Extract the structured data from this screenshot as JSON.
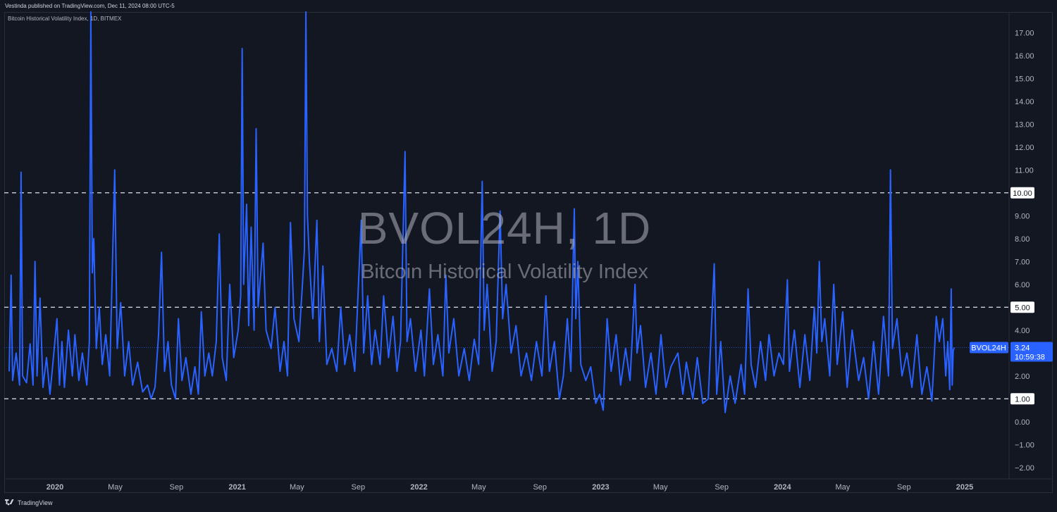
{
  "header": {
    "published": "Vestinda published on TradingView.com, Dec 11, 2024 08:00 UTC-5"
  },
  "chart_title": "Bitcoin Historical Volatility Index, 1D, BITMEX",
  "watermark": {
    "symbol": "BVOL24H, 1D",
    "name": "Bitcoin Historical Volatility Index"
  },
  "footer": {
    "brand": "TradingView"
  },
  "colors": {
    "series": "#2962ff",
    "background": "#131722",
    "axis_text": "#b2b5be"
  },
  "chart_data": {
    "type": "line",
    "title": "Bitcoin Historical Volatility Index, 1D, BITMEX",
    "y_ticks": [
      "17.00",
      "16.00",
      "15.00",
      "14.00",
      "13.00",
      "12.00",
      "11.00",
      "10.00",
      "9.00",
      "8.00",
      "7.00",
      "6.00",
      "5.00",
      "4.00",
      "3.00",
      "2.00",
      "1.00",
      "0.00",
      "−1.00",
      "−2.00"
    ],
    "y_range": [
      -2.5,
      17.9
    ],
    "x_ticks": [
      "2020",
      "May",
      "Sep",
      "2021",
      "May",
      "Sep",
      "2022",
      "May",
      "Sep",
      "2023",
      "May",
      "Sep",
      "2024",
      "May",
      "Sep",
      "2025"
    ],
    "x_tick_dates": [
      "2020-01-01",
      "2020-05-01",
      "2020-09-01",
      "2021-01-01",
      "2021-05-01",
      "2021-09-01",
      "2022-01-01",
      "2022-05-01",
      "2022-09-01",
      "2023-01-01",
      "2023-05-01",
      "2023-09-01",
      "2024-01-01",
      "2024-05-01",
      "2024-09-01",
      "2025-01-01"
    ],
    "horizontal_levels": [
      10.0,
      5.0,
      1.0
    ],
    "level_labels": [
      "10.00",
      "5.00",
      "1.00"
    ],
    "last_value": {
      "series": "BVOL24H",
      "value": "3.24",
      "countdown": "10:59:38"
    },
    "series": [
      {
        "name": "BVOL24H",
        "points": [
          [
            "2019-10-01",
            2.2
          ],
          [
            "2019-10-05",
            6.4
          ],
          [
            "2019-10-08",
            1.8
          ],
          [
            "2019-10-15",
            3.0
          ],
          [
            "2019-10-22",
            1.6
          ],
          [
            "2019-10-25",
            10.9
          ],
          [
            "2019-10-28",
            2.0
          ],
          [
            "2019-11-05",
            1.7
          ],
          [
            "2019-11-12",
            3.4
          ],
          [
            "2019-11-18",
            1.6
          ],
          [
            "2019-11-22",
            7.0
          ],
          [
            "2019-11-26",
            2.0
          ],
          [
            "2019-12-02",
            5.4
          ],
          [
            "2019-12-08",
            1.5
          ],
          [
            "2019-12-15",
            2.8
          ],
          [
            "2019-12-22",
            1.2
          ],
          [
            "2019-12-28",
            2.6
          ],
          [
            "2020-01-05",
            4.5
          ],
          [
            "2020-01-10",
            1.6
          ],
          [
            "2020-01-15",
            3.5
          ],
          [
            "2020-01-20",
            1.5
          ],
          [
            "2020-01-28",
            4.0
          ],
          [
            "2020-02-05",
            2.0
          ],
          [
            "2020-02-10",
            3.8
          ],
          [
            "2020-02-18",
            1.8
          ],
          [
            "2020-02-25",
            3.0
          ],
          [
            "2020-03-05",
            1.6
          ],
          [
            "2020-03-10",
            3.5
          ],
          [
            "2020-03-13",
            17.9
          ],
          [
            "2020-03-16",
            6.5
          ],
          [
            "2020-03-19",
            8.0
          ],
          [
            "2020-03-24",
            3.2
          ],
          [
            "2020-03-30",
            5.0
          ],
          [
            "2020-04-05",
            2.5
          ],
          [
            "2020-04-12",
            3.8
          ],
          [
            "2020-04-20",
            2.0
          ],
          [
            "2020-04-30",
            11.0
          ],
          [
            "2020-05-05",
            3.2
          ],
          [
            "2020-05-12",
            5.2
          ],
          [
            "2020-05-20",
            2.0
          ],
          [
            "2020-05-28",
            3.5
          ],
          [
            "2020-06-05",
            1.6
          ],
          [
            "2020-06-15",
            2.6
          ],
          [
            "2020-06-25",
            1.3
          ],
          [
            "2020-07-05",
            1.6
          ],
          [
            "2020-07-12",
            1.0
          ],
          [
            "2020-07-20",
            1.5
          ],
          [
            "2020-07-27",
            3.8
          ],
          [
            "2020-08-02",
            7.4
          ],
          [
            "2020-08-08",
            2.2
          ],
          [
            "2020-08-15",
            3.5
          ],
          [
            "2020-08-22",
            1.6
          ],
          [
            "2020-08-30",
            1.0
          ],
          [
            "2020-09-05",
            4.5
          ],
          [
            "2020-09-12",
            1.8
          ],
          [
            "2020-09-20",
            2.8
          ],
          [
            "2020-09-30",
            1.2
          ],
          [
            "2020-10-08",
            2.4
          ],
          [
            "2020-10-15",
            1.2
          ],
          [
            "2020-10-21",
            4.8
          ],
          [
            "2020-10-28",
            2.0
          ],
          [
            "2020-11-05",
            3.0
          ],
          [
            "2020-11-12",
            2.0
          ],
          [
            "2020-11-20",
            3.5
          ],
          [
            "2020-11-26",
            8.2
          ],
          [
            "2020-12-02",
            2.8
          ],
          [
            "2020-12-10",
            1.8
          ],
          [
            "2020-12-17",
            6.0
          ],
          [
            "2020-12-25",
            2.8
          ],
          [
            "2021-01-03",
            4.0
          ],
          [
            "2021-01-08",
            5.5
          ],
          [
            "2021-01-11",
            16.3
          ],
          [
            "2021-01-14",
            6.0
          ],
          [
            "2021-01-20",
            9.5
          ],
          [
            "2021-01-24",
            4.2
          ],
          [
            "2021-01-29",
            8.5
          ],
          [
            "2021-02-04",
            4.0
          ],
          [
            "2021-02-08",
            12.8
          ],
          [
            "2021-02-12",
            5.0
          ],
          [
            "2021-02-22",
            7.8
          ],
          [
            "2021-02-28",
            4.0
          ],
          [
            "2021-03-10",
            3.2
          ],
          [
            "2021-03-18",
            5.0
          ],
          [
            "2021-03-28",
            2.2
          ],
          [
            "2021-04-05",
            3.5
          ],
          [
            "2021-04-12",
            2.0
          ],
          [
            "2021-04-18",
            8.7
          ],
          [
            "2021-04-25",
            4.5
          ],
          [
            "2021-05-05",
            3.5
          ],
          [
            "2021-05-12",
            6.0
          ],
          [
            "2021-05-16",
            7.5
          ],
          [
            "2021-05-19",
            18.0
          ],
          [
            "2021-05-22",
            9.0
          ],
          [
            "2021-05-26",
            7.0
          ],
          [
            "2021-06-02",
            4.5
          ],
          [
            "2021-06-10",
            8.8
          ],
          [
            "2021-06-15",
            3.5
          ],
          [
            "2021-06-22",
            6.8
          ],
          [
            "2021-06-30",
            2.5
          ],
          [
            "2021-07-10",
            3.2
          ],
          [
            "2021-07-20",
            2.2
          ],
          [
            "2021-07-28",
            5.0
          ],
          [
            "2021-08-05",
            2.5
          ],
          [
            "2021-08-15",
            3.8
          ],
          [
            "2021-08-25",
            2.2
          ],
          [
            "2021-09-07",
            8.8
          ],
          [
            "2021-09-12",
            3.0
          ],
          [
            "2021-09-20",
            5.5
          ],
          [
            "2021-09-28",
            2.5
          ],
          [
            "2021-10-05",
            4.0
          ],
          [
            "2021-10-15",
            2.5
          ],
          [
            "2021-10-22",
            5.5
          ],
          [
            "2021-11-01",
            2.8
          ],
          [
            "2021-11-10",
            4.6
          ],
          [
            "2021-11-18",
            2.2
          ],
          [
            "2021-11-25",
            3.5
          ],
          [
            "2021-12-04",
            11.8
          ],
          [
            "2021-12-08",
            3.5
          ],
          [
            "2021-12-15",
            4.5
          ],
          [
            "2021-12-25",
            2.2
          ],
          [
            "2022-01-05",
            4.0
          ],
          [
            "2022-01-12",
            2.0
          ],
          [
            "2022-01-22",
            5.8
          ],
          [
            "2022-01-30",
            2.5
          ],
          [
            "2022-02-08",
            3.8
          ],
          [
            "2022-02-18",
            2.0
          ],
          [
            "2022-02-24",
            6.4
          ],
          [
            "2022-03-02",
            3.0
          ],
          [
            "2022-03-12",
            4.5
          ],
          [
            "2022-03-22",
            2.0
          ],
          [
            "2022-04-02",
            3.2
          ],
          [
            "2022-04-12",
            1.8
          ],
          [
            "2022-04-22",
            3.6
          ],
          [
            "2022-05-01",
            2.5
          ],
          [
            "2022-05-08",
            10.5
          ],
          [
            "2022-05-12",
            4.0
          ],
          [
            "2022-05-18",
            6.0
          ],
          [
            "2022-05-28",
            2.2
          ],
          [
            "2022-06-05",
            3.5
          ],
          [
            "2022-06-13",
            9.2
          ],
          [
            "2022-06-18",
            4.5
          ],
          [
            "2022-06-25",
            6.0
          ],
          [
            "2022-07-05",
            3.0
          ],
          [
            "2022-07-15",
            4.2
          ],
          [
            "2022-07-25",
            2.0
          ],
          [
            "2022-08-05",
            3.0
          ],
          [
            "2022-08-15",
            1.8
          ],
          [
            "2022-08-25",
            3.5
          ],
          [
            "2022-09-05",
            2.0
          ],
          [
            "2022-09-13",
            5.5
          ],
          [
            "2022-09-20",
            2.2
          ],
          [
            "2022-09-30",
            3.5
          ],
          [
            "2022-10-10",
            1.0
          ],
          [
            "2022-10-18",
            2.0
          ],
          [
            "2022-10-26",
            4.5
          ],
          [
            "2022-11-02",
            2.2
          ],
          [
            "2022-11-09",
            9.3
          ],
          [
            "2022-11-12",
            4.5
          ],
          [
            "2022-11-16",
            7.0
          ],
          [
            "2022-11-22",
            2.5
          ],
          [
            "2022-12-02",
            1.8
          ],
          [
            "2022-12-12",
            2.4
          ],
          [
            "2022-12-22",
            0.8
          ],
          [
            "2022-12-30",
            1.2
          ],
          [
            "2023-01-06",
            0.5
          ],
          [
            "2023-01-14",
            4.5
          ],
          [
            "2023-01-22",
            2.2
          ],
          [
            "2023-02-01",
            3.8
          ],
          [
            "2023-02-10",
            1.6
          ],
          [
            "2023-02-20",
            3.2
          ],
          [
            "2023-03-01",
            1.8
          ],
          [
            "2023-03-11",
            6.0
          ],
          [
            "2023-03-15",
            3.0
          ],
          [
            "2023-03-22",
            4.2
          ],
          [
            "2023-04-01",
            1.5
          ],
          [
            "2023-04-12",
            3.0
          ],
          [
            "2023-04-22",
            1.2
          ],
          [
            "2023-05-02",
            3.8
          ],
          [
            "2023-05-12",
            1.5
          ],
          [
            "2023-05-22",
            2.4
          ],
          [
            "2023-06-05",
            3.0
          ],
          [
            "2023-06-15",
            1.2
          ],
          [
            "2023-06-22",
            2.6
          ],
          [
            "2023-07-05",
            1.0
          ],
          [
            "2023-07-14",
            2.8
          ],
          [
            "2023-07-25",
            0.8
          ],
          [
            "2023-08-05",
            1.0
          ],
          [
            "2023-08-17",
            6.9
          ],
          [
            "2023-08-22",
            1.2
          ],
          [
            "2023-08-30",
            3.5
          ],
          [
            "2023-09-08",
            0.4
          ],
          [
            "2023-09-18",
            2.0
          ],
          [
            "2023-09-28",
            0.8
          ],
          [
            "2023-10-10",
            2.5
          ],
          [
            "2023-10-17",
            1.2
          ],
          [
            "2023-10-24",
            5.8
          ],
          [
            "2023-10-30",
            2.5
          ],
          [
            "2023-11-08",
            1.5
          ],
          [
            "2023-11-18",
            3.5
          ],
          [
            "2023-11-28",
            1.8
          ],
          [
            "2023-12-05",
            3.8
          ],
          [
            "2023-12-15",
            2.0
          ],
          [
            "2023-12-25",
            3.0
          ],
          [
            "2024-01-03",
            2.5
          ],
          [
            "2024-01-11",
            6.2
          ],
          [
            "2024-01-15",
            2.2
          ],
          [
            "2024-01-25",
            4.0
          ],
          [
            "2024-02-05",
            1.5
          ],
          [
            "2024-02-15",
            3.8
          ],
          [
            "2024-02-25",
            1.8
          ],
          [
            "2024-03-05",
            5.0
          ],
          [
            "2024-03-10",
            3.0
          ],
          [
            "2024-03-15",
            7.0
          ],
          [
            "2024-03-20",
            3.5
          ],
          [
            "2024-03-26",
            4.5
          ],
          [
            "2024-04-05",
            2.0
          ],
          [
            "2024-04-13",
            6.0
          ],
          [
            "2024-04-20",
            2.5
          ],
          [
            "2024-05-01",
            4.8
          ],
          [
            "2024-05-10",
            1.5
          ],
          [
            "2024-05-20",
            4.0
          ],
          [
            "2024-06-02",
            1.8
          ],
          [
            "2024-06-12",
            2.8
          ],
          [
            "2024-06-22",
            1.0
          ],
          [
            "2024-07-02",
            3.5
          ],
          [
            "2024-07-12",
            1.2
          ],
          [
            "2024-07-22",
            4.6
          ],
          [
            "2024-08-01",
            2.0
          ],
          [
            "2024-08-05",
            11.0
          ],
          [
            "2024-08-09",
            3.2
          ],
          [
            "2024-08-18",
            4.5
          ],
          [
            "2024-08-28",
            2.0
          ],
          [
            "2024-09-07",
            3.0
          ],
          [
            "2024-09-17",
            1.5
          ],
          [
            "2024-09-27",
            3.8
          ],
          [
            "2024-10-07",
            1.2
          ],
          [
            "2024-10-17",
            2.4
          ],
          [
            "2024-10-27",
            0.9
          ],
          [
            "2024-11-05",
            4.6
          ],
          [
            "2024-11-11",
            3.5
          ],
          [
            "2024-11-18",
            4.5
          ],
          [
            "2024-11-24",
            2.0
          ],
          [
            "2024-11-28",
            3.5
          ],
          [
            "2024-12-02",
            1.4
          ],
          [
            "2024-12-05",
            5.8
          ],
          [
            "2024-12-07",
            1.6
          ],
          [
            "2024-12-09",
            3.1
          ],
          [
            "2024-12-11",
            3.24
          ]
        ]
      }
    ]
  }
}
